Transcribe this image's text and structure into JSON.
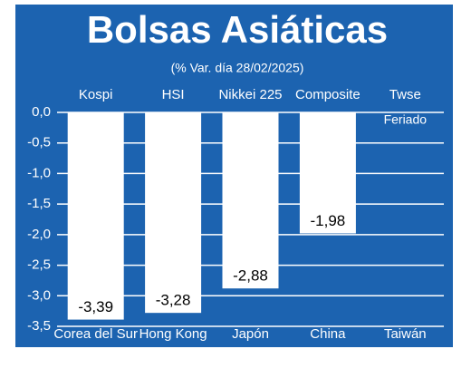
{
  "chart_data": {
    "type": "bar",
    "title": "Bolsas Asiáticas",
    "subtitle": "(% Var. día 28/02/2025)",
    "indices": [
      "Kospi",
      "HSI",
      "Nikkei 225",
      "Composite",
      "Twse"
    ],
    "categories": [
      "Corea del Sur",
      "Hong Kong",
      "Japón",
      "China",
      "Taiwán"
    ],
    "values": [
      -3.39,
      -3.28,
      -2.88,
      -1.98,
      null
    ],
    "value_labels": [
      "-3,39",
      "-3,28",
      "-2,88",
      "-1,98",
      null
    ],
    "annotations": [
      {
        "category": "Taiwán",
        "text": "Feriado"
      }
    ],
    "color": "#ffffff",
    "background": "#1c63b0",
    "ylim": [
      -3.5,
      0
    ],
    "yticks": [
      {
        "value": 0,
        "label": "0,0"
      },
      {
        "value": -0.5,
        "label": "-0,5"
      },
      {
        "value": -1,
        "label": "-1,0"
      },
      {
        "value": -1.5,
        "label": "-1,5"
      },
      {
        "value": -2,
        "label": "-2,0"
      },
      {
        "value": -2.5,
        "label": "-2,5"
      },
      {
        "value": -3,
        "label": "-3,0"
      },
      {
        "value": -3.5,
        "label": "-3,5"
      }
    ],
    "grid": true
  }
}
